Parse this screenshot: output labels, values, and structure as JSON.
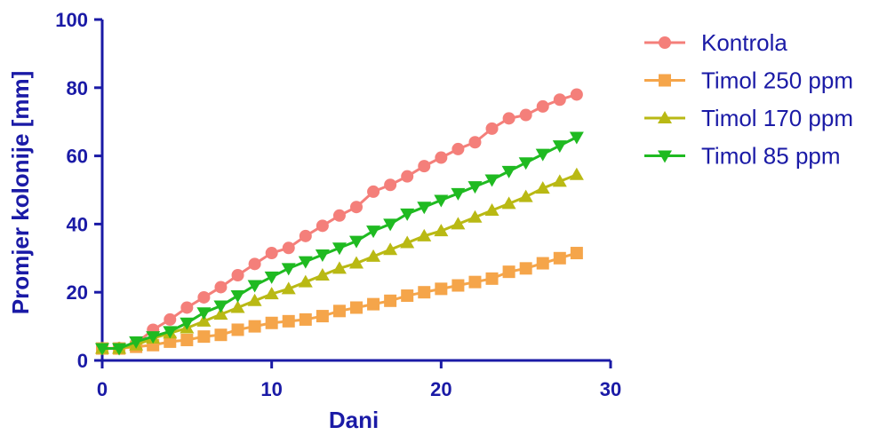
{
  "chart_data": {
    "type": "line",
    "xlabel": "Dani",
    "ylabel": "Promjer kolonije [mm]",
    "xlim": [
      0,
      30
    ],
    "ylim": [
      0,
      100
    ],
    "xticks": [
      0,
      10,
      20,
      30
    ],
    "yticks": [
      0,
      20,
      40,
      60,
      80,
      100
    ],
    "grid": false,
    "legend_position": "right",
    "axis_color": "#1a1aa6",
    "x": [
      0,
      1,
      2,
      3,
      4,
      5,
      6,
      7,
      8,
      9,
      10,
      11,
      12,
      13,
      14,
      15,
      16,
      17,
      18,
      19,
      20,
      21,
      22,
      23,
      24,
      25,
      26,
      27,
      28
    ],
    "series": [
      {
        "name": "Kontrola",
        "marker": "circle",
        "color": "#f47f7a",
        "values": [
          3.5,
          3.6,
          5,
          9,
          12,
          15.5,
          18.5,
          21.5,
          25,
          28.3,
          31.5,
          33,
          36.5,
          39.5,
          42.5,
          45,
          49.5,
          51.5,
          54,
          57,
          59.5,
          62,
          64,
          68,
          71,
          72,
          74.5,
          76.5,
          78
        ]
      },
      {
        "name": "Timol 250 ppm",
        "marker": "square",
        "color": "#f5a54a",
        "values": [
          3.5,
          3.5,
          4,
          4.5,
          5.5,
          6,
          7,
          7.5,
          9,
          10,
          11,
          11.5,
          12,
          13,
          14.5,
          15.5,
          16.5,
          17.5,
          19,
          20,
          21,
          22,
          23,
          24,
          26,
          27,
          28.5,
          30,
          31.5
        ]
      },
      {
        "name": "Timol 170 ppm",
        "marker": "triangle-up",
        "color": "#b9b914",
        "values": [
          3.5,
          3.5,
          4.5,
          6.5,
          8,
          9.5,
          11.5,
          13.5,
          15.5,
          17.5,
          19.5,
          21,
          23,
          25,
          27,
          28.5,
          30.5,
          32.5,
          34.5,
          36.5,
          38,
          40,
          42,
          44,
          46,
          48,
          50.5,
          52.5,
          54.5
        ]
      },
      {
        "name": "Timol 85 ppm",
        "marker": "triangle-down",
        "color": "#1fba21",
        "values": [
          3.5,
          3.5,
          5.5,
          7,
          8.5,
          11,
          14,
          16,
          19,
          22,
          24.5,
          27,
          29,
          31,
          33,
          35,
          38,
          40,
          43,
          45,
          47,
          49,
          51,
          53,
          55.5,
          58,
          60.5,
          63,
          65.5
        ]
      }
    ]
  }
}
